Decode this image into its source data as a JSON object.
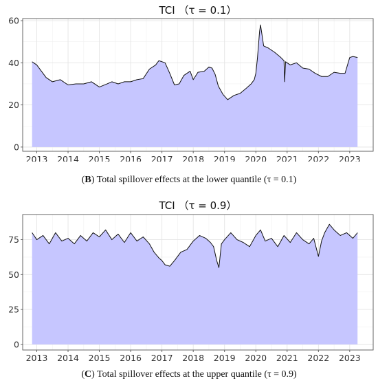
{
  "chart_data": [
    {
      "type": "area",
      "title": "TCI  （τ = 0.1）",
      "caption_letter": "B",
      "caption_text": " Total spillover effects at the lower quantile (τ = 0.1)",
      "xlim": [
        2012.55,
        2023.75
      ],
      "ylim": [
        -2,
        61
      ],
      "x_ticks": [
        2013,
        2014,
        2015,
        2016,
        2017,
        2018,
        2019,
        2020,
        2021,
        2022,
        2023
      ],
      "y_ticks": [
        0,
        20,
        40,
        60
      ],
      "fill_color": "#c6c6ff",
      "line_color": "#111111",
      "grid": true,
      "x": [
        2012.85,
        2013.0,
        2013.1,
        2013.3,
        2013.5,
        2013.75,
        2014.0,
        2014.25,
        2014.5,
        2014.75,
        2015.0,
        2015.25,
        2015.4,
        2015.6,
        2015.8,
        2016.0,
        2016.2,
        2016.4,
        2016.6,
        2016.8,
        2016.9,
        2017.1,
        2017.25,
        2017.4,
        2017.55,
        2017.7,
        2017.9,
        2018.0,
        2018.15,
        2018.35,
        2018.5,
        2018.6,
        2018.7,
        2018.8,
        2018.95,
        2019.1,
        2019.3,
        2019.5,
        2019.7,
        2019.85,
        2019.95,
        2020.0,
        2020.05,
        2020.12,
        2020.15,
        2020.25,
        2020.4,
        2020.6,
        2020.8,
        2020.9,
        2020.92,
        2020.95,
        2021.1,
        2021.3,
        2021.5,
        2021.7,
        2021.9,
        2022.1,
        2022.3,
        2022.5,
        2022.7,
        2022.85,
        2023.0,
        2023.1,
        2023.25
      ],
      "y": [
        40.5,
        39,
        37,
        33,
        31,
        32,
        29.5,
        30,
        30,
        31,
        28.5,
        30,
        31,
        30,
        31,
        31,
        32,
        32.5,
        37,
        39,
        41,
        40,
        35,
        29.5,
        30,
        34,
        36,
        32,
        35.5,
        36,
        38,
        37.5,
        34.5,
        29,
        25,
        22.5,
        24.5,
        25.5,
        28,
        30,
        32,
        35,
        42,
        55,
        58,
        48,
        47,
        45,
        42.5,
        41,
        31,
        40.5,
        39,
        40,
        37.5,
        37,
        35,
        33.5,
        33.5,
        35.5,
        35,
        35,
        42.5,
        43,
        42.5
      ]
    },
    {
      "type": "area",
      "title": "TCI  （τ = 0.9）",
      "caption_letter": "C",
      "caption_text": " Total spillover effects at the upper quantile (τ = 0.9)",
      "xlim": [
        2012.55,
        2023.75
      ],
      "ylim": [
        -4,
        93
      ],
      "x_ticks": [
        2013,
        2014,
        2015,
        2016,
        2017,
        2018,
        2019,
        2020,
        2021,
        2022,
        2023
      ],
      "y_ticks": [
        0,
        25,
        50,
        75
      ],
      "fill_color": "#c6c6ff",
      "line_color": "#111111",
      "grid": true,
      "x": [
        2012.85,
        2013.0,
        2013.2,
        2013.4,
        2013.6,
        2013.8,
        2014.0,
        2014.2,
        2014.4,
        2014.6,
        2014.8,
        2015.0,
        2015.2,
        2015.4,
        2015.6,
        2015.8,
        2016.0,
        2016.2,
        2016.4,
        2016.6,
        2016.75,
        2016.9,
        2017.0,
        2017.1,
        2017.25,
        2017.4,
        2017.6,
        2017.8,
        2018.0,
        2018.2,
        2018.4,
        2018.55,
        2018.65,
        2018.75,
        2018.82,
        2018.9,
        2019.0,
        2019.2,
        2019.4,
        2019.6,
        2019.8,
        2020.0,
        2020.15,
        2020.3,
        2020.5,
        2020.7,
        2020.9,
        2021.1,
        2021.3,
        2021.5,
        2021.7,
        2021.85,
        2022.0,
        2022.1,
        2022.2,
        2022.35,
        2022.5,
        2022.7,
        2022.9,
        2023.1,
        2023.25
      ],
      "y": [
        80,
        75,
        78,
        72,
        80,
        74,
        76,
        72,
        78,
        74,
        80,
        77,
        82,
        75,
        79,
        73,
        80,
        74,
        77,
        72,
        66,
        62,
        60,
        57,
        56,
        60,
        66,
        68,
        74,
        78,
        76,
        73,
        70,
        60,
        55,
        72,
        75,
        80,
        75,
        73,
        70,
        78,
        82,
        74,
        76,
        70,
        78,
        73,
        80,
        75,
        72,
        76,
        63,
        74,
        80,
        86,
        82,
        78,
        80,
        76,
        80
      ]
    }
  ]
}
